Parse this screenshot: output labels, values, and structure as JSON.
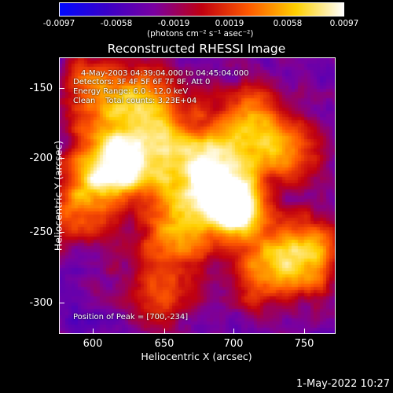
{
  "colorbar": {
    "tick_labels": [
      "-0.0097",
      "-0.0058",
      "-0.0019",
      "0.0019",
      "0.0058",
      "0.0097"
    ],
    "units": "(photons cm⁻² s⁻¹ asec⁻²)",
    "range": [
      -0.0097,
      0.0097
    ],
    "colormap": "rhessi-color-table-5",
    "colors": [
      "#0008ff",
      "#3a00c8",
      "#7a00a0",
      "#c00010",
      "#ff5a00",
      "#ffd000",
      "#ffffff"
    ]
  },
  "title": "Reconstructed RHESSI Image",
  "annotations": {
    "time_range": "4-May-2003 04:39:04.000 to 04:45:04.000",
    "detectors": "Detectors: 3F 4F 5F 6F 7F 8F, Att 0",
    "energy": "Energy Range: 6.0 - 12.0 keV",
    "clean": "Clean    Total counts: 3.23E+04",
    "peak": "Position of Peak = [700,-234]"
  },
  "axes": {
    "xlabel": "Heliocentric X (arcsec)",
    "ylabel": "Heliocentric Y (arcsec)",
    "xticks": [
      "600",
      "650",
      "700",
      "750"
    ],
    "yticks": [
      "-150",
      "-200",
      "-250",
      "-300"
    ]
  },
  "timestamp": "1-May-2022 10:27",
  "chart_data": {
    "type": "heatmap",
    "title": "Reconstructed RHESSI Image",
    "xlabel": "Heliocentric X (arcsec)",
    "ylabel": "Heliocentric Y (arcsec)",
    "xlim": [
      577,
      770
    ],
    "ylim": [
      -320,
      -128
    ],
    "peak": [
      700,
      -234
    ],
    "colorbar_range": [
      -0.0097,
      0.0097
    ],
    "sources": [
      {
        "x": 700,
        "y": -234,
        "value": 0.0097
      },
      {
        "x": 690,
        "y": -215,
        "value": 0.0058
      },
      {
        "x": 660,
        "y": -245,
        "value": 0.0045
      },
      {
        "x": 610,
        "y": -205,
        "value": 0.0058
      },
      {
        "x": 630,
        "y": -195,
        "value": 0.0045
      },
      {
        "x": 600,
        "y": -150,
        "value": 0.004
      },
      {
        "x": 640,
        "y": -158,
        "value": 0.0035
      },
      {
        "x": 735,
        "y": -190,
        "value": 0.004
      },
      {
        "x": 750,
        "y": -265,
        "value": 0.0055
      },
      {
        "x": 720,
        "y": -278,
        "value": 0.0038
      },
      {
        "x": 650,
        "y": -290,
        "value": 0.003
      },
      {
        "x": 590,
        "y": -235,
        "value": 0.0022
      },
      {
        "x": 705,
        "y": -170,
        "value": 0.003
      },
      {
        "x": 668,
        "y": -198,
        "value": 0.0032
      }
    ]
  }
}
